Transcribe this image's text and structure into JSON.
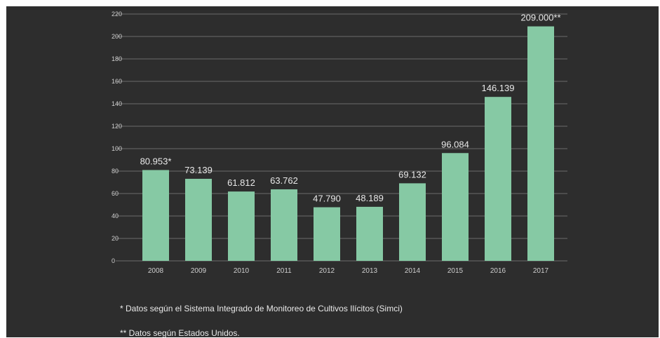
{
  "chart_data": {
    "type": "bar",
    "categories": [
      "2008",
      "2009",
      "2010",
      "2011",
      "2012",
      "2013",
      "2014",
      "2015",
      "2016",
      "2017"
    ],
    "values": [
      80.953,
      73.139,
      61.812,
      63.762,
      47.79,
      48.189,
      69.132,
      96.084,
      146.139,
      209.0
    ],
    "data_labels": [
      "80.953*",
      "73.139",
      "61.812",
      "63.762",
      "47.790",
      "48.189",
      "69.132",
      "96.084",
      "146.139",
      "209.000**"
    ],
    "yticks": [
      "0",
      "20",
      "40",
      "60",
      "80",
      "100",
      "120",
      "140",
      "160",
      "180",
      "200",
      "220"
    ],
    "ylim": [
      0,
      220
    ],
    "title": "",
    "xlabel": "",
    "ylabel": "",
    "grid": true,
    "colors": {
      "bar": "#86c9a4",
      "background": "#2d2d2d",
      "grid": "#6b6b6b",
      "text": "#e9e9e9",
      "tick_text": "#cfcfcf"
    }
  },
  "notes": {
    "note_1": "* Datos según el Sistema Integrado de Monitoreo de Cultivos Ilícitos (Simci)",
    "note_2": "** Datos según Estados Unidos."
  }
}
